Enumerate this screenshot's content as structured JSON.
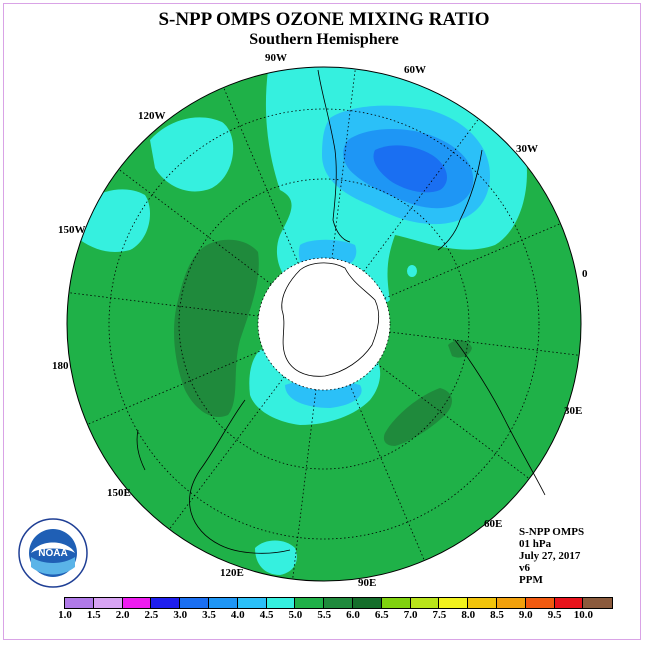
{
  "title": "S-NPP OMPS OZONE MIXING RATIO",
  "subtitle": "Southern Hemisphere",
  "longitude_labels": [
    "90W",
    "60W",
    "30W",
    "0",
    "30E",
    "60E",
    "90E",
    "120E",
    "150E",
    "180",
    "150W",
    "120W"
  ],
  "info": {
    "instrument": "S-NPP OMPS",
    "level": "01 hPa",
    "date": "July 27, 2017",
    "version": "v6",
    "units": "PPM"
  },
  "logo_text": "NOAA",
  "colorbar": {
    "ticks": [
      "1.0",
      "1.5",
      "2.0",
      "2.5",
      "3.0",
      "3.5",
      "4.0",
      "4.5",
      "5.0",
      "5.5",
      "6.0",
      "6.5",
      "7.0",
      "7.5",
      "8.0",
      "8.5",
      "9.0",
      "9.5",
      "10.0"
    ],
    "colors": [
      "#b07ae8",
      "#d7a3f3",
      "#ee1cf0",
      "#1f1fee",
      "#1a6ff2",
      "#1e96f5",
      "#2bc0f8",
      "#35f0df",
      "#1fb148",
      "#1f8a3c",
      "#156e2b",
      "#80d20e",
      "#b9e41a",
      "#f2f21d",
      "#f2c40b",
      "#f2a10c",
      "#f25a0f",
      "#e8131b",
      "#8b5a3c"
    ]
  }
}
